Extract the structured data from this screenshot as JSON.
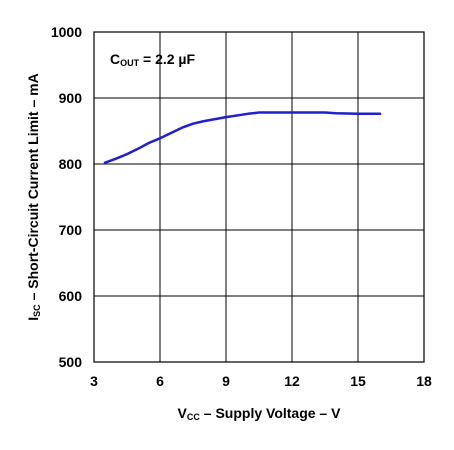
{
  "chart_data": {
    "type": "line",
    "title": "",
    "xlabel": {
      "main": "V",
      "sub": "CC",
      "rest": " – Supply Voltage – V"
    },
    "ylabel": {
      "main": "I",
      "sub": "SC",
      "rest": " – Short-Circuit Current Limit – mA"
    },
    "annotation": {
      "main": "C",
      "sub": "OUT",
      "rest": " = 2.2 µF"
    },
    "xlim": [
      3,
      18
    ],
    "ylim": [
      500,
      1000
    ],
    "xticks": [
      3,
      6,
      9,
      12,
      15,
      18
    ],
    "yticks": [
      500,
      600,
      700,
      800,
      900,
      1000
    ],
    "grid": true,
    "line_color": "#1f1fd0",
    "series": [
      {
        "x": [
          3.5,
          4.0,
          4.5,
          5.0,
          5.5,
          6.0,
          6.5,
          7.0,
          7.5,
          8.0,
          9.0,
          10.0,
          10.5,
          11.0,
          12.0,
          13.0,
          13.5,
          14.0,
          15.0,
          16.0
        ],
        "values": [
          802,
          808,
          815,
          823,
          832,
          839,
          847,
          855,
          861,
          865,
          871,
          876,
          878,
          878,
          878,
          878,
          878,
          877,
          876,
          876
        ]
      }
    ]
  }
}
